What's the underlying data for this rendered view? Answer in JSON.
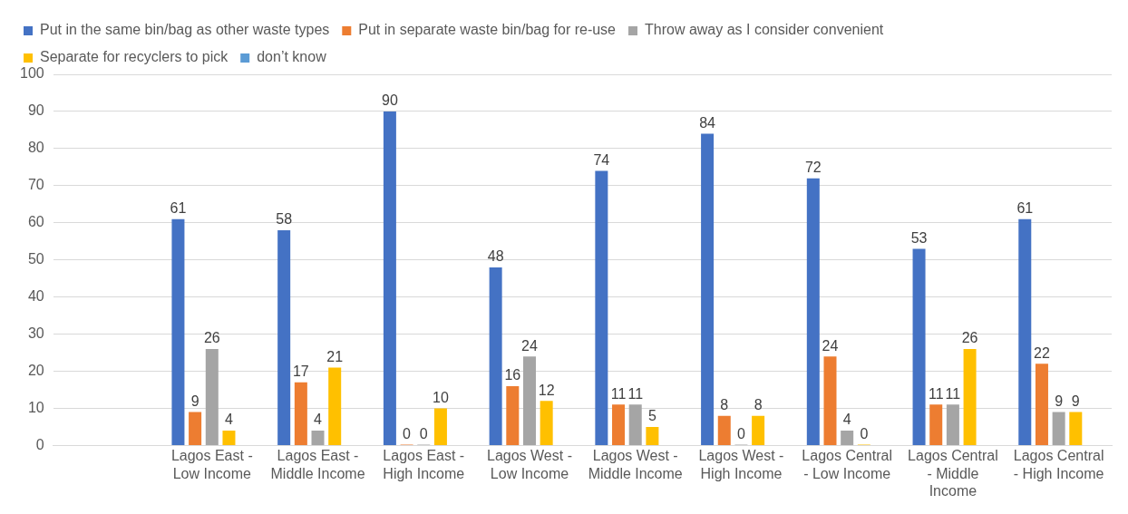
{
  "chart_data": {
    "type": "bar",
    "categories": [
      null,
      "Lagos East - Low Income",
      "Lagos East - Middle Income",
      "Lagos East - High Income",
      "Lagos West - Low Income",
      "Lagos West - Middle Income",
      "Lagos West - High Income",
      "Lagos Central - Low Income",
      "Lagos Central - Middle Income",
      "Lagos Central - High Income"
    ],
    "series": [
      {
        "name": "Put in the same bin/bag as other waste types",
        "color": "#4472c4",
        "values": [
          null,
          61,
          58,
          90,
          48,
          74,
          84,
          72,
          53,
          61
        ]
      },
      {
        "name": "Put in separate waste bin/bag for re-use",
        "color": "#ed7d31",
        "values": [
          null,
          9,
          17,
          0,
          16,
          11,
          8,
          24,
          11,
          22
        ]
      },
      {
        "name": "Throw away as I consider convenient",
        "color": "#a5a5a5",
        "values": [
          null,
          26,
          4,
          0,
          24,
          11,
          0,
          4,
          11,
          9
        ]
      },
      {
        "name": "Separate for recyclers to pick",
        "color": "#ffc000",
        "values": [
          null,
          4,
          21,
          10,
          12,
          5,
          8,
          0,
          26,
          9
        ]
      },
      {
        "name": "don’t know",
        "color": "#5b9bd5",
        "values": [
          null,
          null,
          null,
          null,
          null,
          null,
          null,
          null,
          null,
          null
        ]
      }
    ],
    "ylim": [
      0,
      100
    ],
    "yticks": [
      0,
      10,
      20,
      30,
      40,
      50,
      60,
      70,
      80,
      90,
      100
    ],
    "grid": "y",
    "legend": "top",
    "data_labels": true
  }
}
